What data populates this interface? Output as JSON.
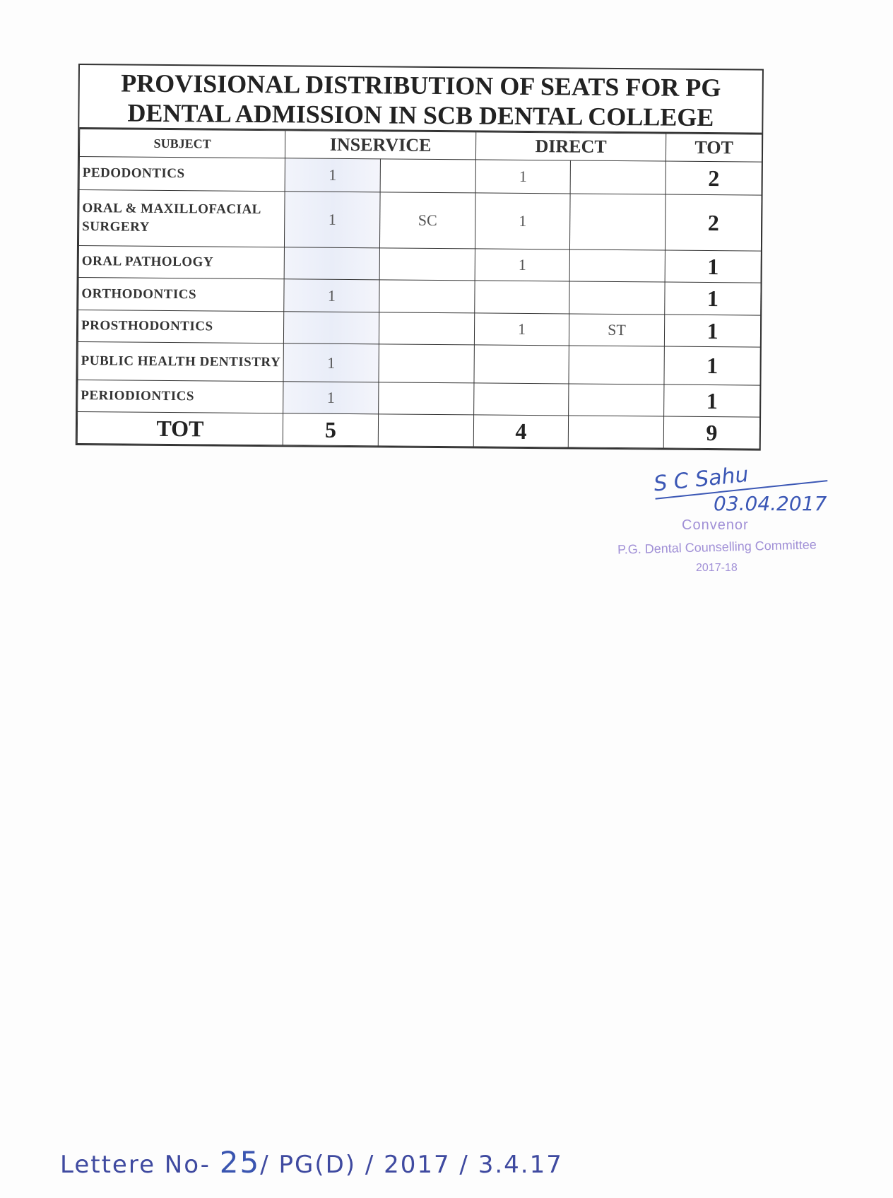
{
  "title": "PROVISIONAL DISTRIBUTION OF SEATS FOR PG DENTAL ADMISSION IN SCB DENTAL COLLEGE",
  "headers": {
    "subject": "SUBJECT",
    "inservice": "INSERVICE",
    "direct": "DIRECT",
    "tot": "TOT"
  },
  "rows": [
    {
      "subject": "PEDODONTICS",
      "inservice": "1",
      "inservice_cat": "",
      "direct": "1",
      "direct_cat": "",
      "tot": "2"
    },
    {
      "subject": "ORAL & MAXILLOFACIAL SURGERY",
      "inservice": "1",
      "inservice_cat": "SC",
      "direct": "1",
      "direct_cat": "",
      "tot": "2"
    },
    {
      "subject": "ORAL PATHOLOGY",
      "inservice": "",
      "inservice_cat": "",
      "direct": "1",
      "direct_cat": "",
      "tot": "1"
    },
    {
      "subject": "ORTHODONTICS",
      "inservice": "1",
      "inservice_cat": "",
      "direct": "",
      "direct_cat": "",
      "tot": "1"
    },
    {
      "subject": "PROSTHODONTICS",
      "inservice": "",
      "inservice_cat": "",
      "direct": "1",
      "direct_cat": "ST",
      "tot": "1"
    },
    {
      "subject": "PUBLIC HEALTH DENTISTRY",
      "inservice": "1",
      "inservice_cat": "",
      "direct": "",
      "direct_cat": "",
      "tot": "1"
    },
    {
      "subject": "PERIODIONTICS",
      "inservice": "1",
      "inservice_cat": "",
      "direct": "",
      "direct_cat": "",
      "tot": "1"
    }
  ],
  "total": {
    "label": "TOT",
    "inservice": "5",
    "direct": "4",
    "tot": "9"
  },
  "signature": {
    "name": "S C Sahu",
    "date": "03.04.2017"
  },
  "stamp": {
    "line1": "Convenor",
    "line2": "P.G. Dental Counselling Committee",
    "line3": "2017-18"
  },
  "letter": {
    "prefix": "Lettere No-",
    "number": "25",
    "suffix": "/ PG(D) / 2017 / 3.4.17"
  }
}
